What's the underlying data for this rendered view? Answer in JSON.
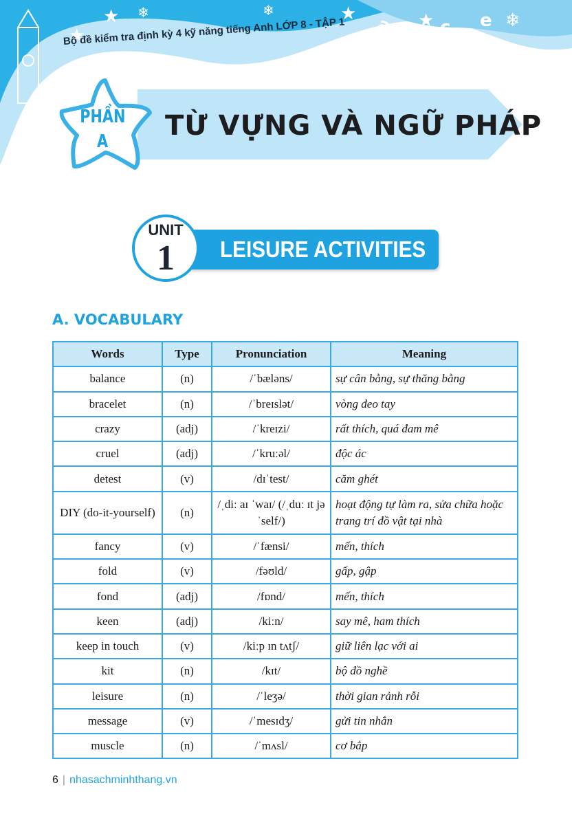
{
  "header": {
    "book_title": "Bộ đề kiểm tra định kỳ 4 kỹ năng tiếng Anh LỚP 8 - TẬP 1",
    "decor_letters": [
      "a",
      "b",
      "c",
      "e"
    ]
  },
  "part": {
    "label": "PHẦN",
    "letter": "A",
    "title": "TỪ VỰNG VÀ NGỮ PHÁP"
  },
  "unit": {
    "label": "UNIT",
    "number": "1",
    "title": "LEISURE ACTIVITIES"
  },
  "section_title": "A. VOCABULARY",
  "table": {
    "headers": [
      "Words",
      "Type",
      "Pronunciation",
      "Meaning"
    ],
    "rows": [
      {
        "word": "balance",
        "type": "(n)",
        "pron": "/ˈbæləns/",
        "meaning": "sự cân bằng, sự thăng bằng"
      },
      {
        "word": "bracelet",
        "type": "(n)",
        "pron": "/ˈbreɪslət/",
        "meaning": "vòng đeo tay"
      },
      {
        "word": "crazy",
        "type": "(adj)",
        "pron": "/ˈkreɪzi/",
        "meaning": "rất thích, quá đam mê"
      },
      {
        "word": "cruel",
        "type": "(adj)",
        "pron": "/ˈkruːəl/",
        "meaning": "độc ác"
      },
      {
        "word": "detest",
        "type": "(v)",
        "pron": "/dɪˈtest/",
        "meaning": "căm ghét"
      },
      {
        "word": "DIY (do-it-yourself)",
        "type": "(n)",
        "pron": "/ˌdiː aɪ ˈwaɪ/ (/ˌduː ɪt jəˈself/)",
        "meaning": "hoạt động tự làm ra, sửa chữa hoặc trang trí đồ vật tại nhà"
      },
      {
        "word": "fancy",
        "type": "(v)",
        "pron": "/ˈfænsi/",
        "meaning": "mến, thích"
      },
      {
        "word": "fold",
        "type": "(v)",
        "pron": "/fəʊld/",
        "meaning": "gấp, gập"
      },
      {
        "word": "fond",
        "type": "(adj)",
        "pron": "/fɒnd/",
        "meaning": "mến, thích"
      },
      {
        "word": "keen",
        "type": "(adj)",
        "pron": "/kiːn/",
        "meaning": "say mê, ham thích"
      },
      {
        "word": "keep in touch",
        "type": "(v)",
        "pron": "/kiːp ɪn tʌtʃ/",
        "meaning": "giữ liên lạc với ai"
      },
      {
        "word": "kit",
        "type": "(n)",
        "pron": "/kɪt/",
        "meaning": "bộ đồ nghề"
      },
      {
        "word": "leisure",
        "type": "(n)",
        "pron": "/ˈleʒə/",
        "meaning": "thời gian rảnh rỗi"
      },
      {
        "word": "message",
        "type": "(v)",
        "pron": "/ˈmesɪdʒ/",
        "meaning": "gửi tin nhắn"
      },
      {
        "word": "muscle",
        "type": "(n)",
        "pron": "/ˈmʌsl/",
        "meaning": "cơ bắp"
      }
    ]
  },
  "footer": {
    "page": "6",
    "site": "nhasachminhthang.vn"
  },
  "colors": {
    "accent": "#1fa3e0",
    "light": "#c9e9f9"
  }
}
